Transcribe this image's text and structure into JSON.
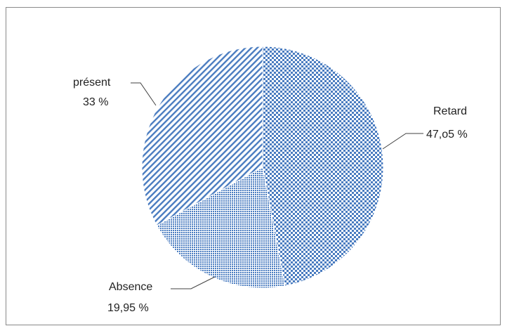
{
  "chart_data": {
    "type": "pie",
    "title": "",
    "slices": [
      {
        "label": "Retard",
        "value_text": "47,o5  %",
        "value": 47.05,
        "pattern": "checker"
      },
      {
        "label": "Absence",
        "value_text": "19,95 %",
        "value": 19.95,
        "pattern": "fine-dots"
      },
      {
        "label": "présent",
        "value_text": "33 %",
        "value": 33,
        "pattern": "diagonal-stripes"
      }
    ],
    "start_angle_deg": 0,
    "direction": "clockwise",
    "legend": "none"
  },
  "colors": {
    "pattern_color": "#4a7cc0",
    "background": "#ffffff",
    "frame": "#8a8a8a",
    "leader_line": "#404040",
    "text": "#222222"
  }
}
